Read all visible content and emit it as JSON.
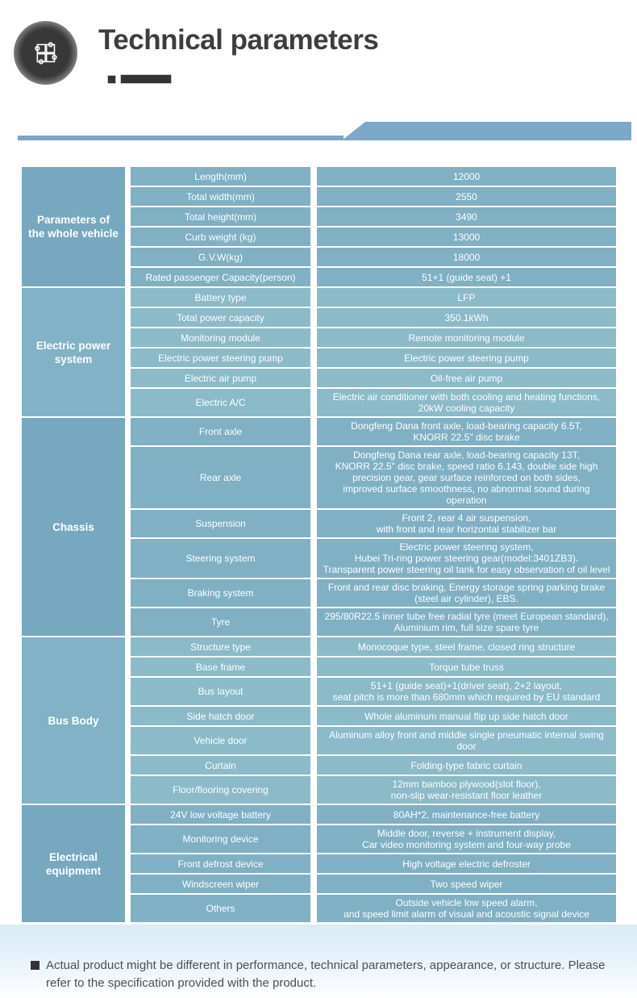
{
  "header": {
    "title": "Technical parameters",
    "icon": "puzzle-icon"
  },
  "table": {
    "sections": [
      {
        "category": "Parameters of\nthe whole vehicle",
        "rows": [
          {
            "param": "Length(mm)",
            "value": "12000"
          },
          {
            "param": "Total width(mm)",
            "value": "2550"
          },
          {
            "param": "Total height(mm)",
            "value": "3490"
          },
          {
            "param": "Curb weight (kg)",
            "value": "13000"
          },
          {
            "param": "G.V.W(kg)",
            "value": "18000"
          },
          {
            "param": "Rated passenger Capacity(person)",
            "value": "51+1 (guide seat) +1"
          }
        ]
      },
      {
        "category": "Electric power\nsystem",
        "rows": [
          {
            "param": "Battery type",
            "value": "LFP"
          },
          {
            "param": "Total power capacity",
            "value": "350.1kWh"
          },
          {
            "param": "Monitoring module",
            "value": "Remote monitoring module"
          },
          {
            "param": "Electric power steering pump",
            "value": "Electric power steering pump"
          },
          {
            "param": "Electric air pump",
            "value": "Oil-free air pump"
          },
          {
            "param": "Electric A/C",
            "value": "Electric air conditioner with both cooling and heating functions,\n20kW cooling capacity"
          }
        ]
      },
      {
        "category": "Chassis",
        "rows": [
          {
            "param": "Front axle",
            "value": "Dongfeng Dana front axle, load-bearing capacity 6.5T,\nKNORR 22.5\" disc brake"
          },
          {
            "param": "Rear axle",
            "value": "Dongfeng Dana rear axle, load-bearing capacity 13T,\nKNORR 22.5\" disc brake, speed ratio 6.143, double side high\nprecision gear, gear surface reinforced on both sides,\nimproved surface smoothness, no abnormal sound during operation"
          },
          {
            "param": "Suspension",
            "value": "Front 2, rear 4 air suspension,\nwith front and rear horizontal stabilizer bar"
          },
          {
            "param": "Steering system",
            "value": "Electric power steering system,\nHubei Tri-ring power steering gear(model:3401ZB3).\nTransparent power steering oil tank for easy observation of oil level"
          },
          {
            "param": "Braking system",
            "value": "Front and rear disc braking, Energy storage spring parking brake\n(steel air cylinder), EBS."
          },
          {
            "param": "Tyre",
            "value": "295/80R22.5 inner tube free radial tyre (meet European standard),\nAluminium rim, full size spare tyre"
          }
        ]
      },
      {
        "category": "Bus Body",
        "rows": [
          {
            "param": "Structure type",
            "value": "Monocoque type, steel frame, closed ring structure"
          },
          {
            "param": "Base frame",
            "value": "Torque tube truss"
          },
          {
            "param": "Bus layout",
            "value": "51+1 (guide seat)+1(driver seat), 2+2 layout,\nseat pitch is more than 680mm which required by EU standard"
          },
          {
            "param": "Side hatch door",
            "value": "Whole aluminum manual flip up side hatch door"
          },
          {
            "param": "Vehicle door",
            "value": "Aluminum alloy front and middle single pneumatic internal swing door"
          },
          {
            "param": "Curtain",
            "value": "Folding-type fabric curtain"
          },
          {
            "param": "Floor/flooring covering",
            "value": "12mm bamboo plywood(slot floor),\nnon-slip wear-resistant floor leather"
          }
        ]
      },
      {
        "category": "Electrical\nequipment",
        "rows": [
          {
            "param": "24V low voltage battery",
            "value": "80AH*2, maintenance-free battery"
          },
          {
            "param": "Monitoring device",
            "value": "Middle door, reverse + instrument display,\nCar video monitoring system and four-way probe"
          },
          {
            "param": "Front defrost device",
            "value": "High voltage electric defroster"
          },
          {
            "param": "Windscreen wiper",
            "value": "Two speed wiper"
          },
          {
            "param": "Others",
            "value": "Outside vehicle low speed alarm,\nand speed limit alarm of visual and acoustic signal device"
          }
        ]
      }
    ]
  },
  "footer": {
    "disclaimer": "Actual product might be different in performance, technical parameters, appearance, or structure. Please refer to the specification provided with the product."
  },
  "colors": {
    "accent_blue": "#7BA7C8",
    "category_cell": "#76A8BF",
    "category_cell_alt": "#81B2C5",
    "value_cell": "#7FB0C3",
    "value_cell_alt": "#8BBAC9",
    "footer_panel_top": "#D9EBF6",
    "title_text": "#3D3D3D"
  }
}
